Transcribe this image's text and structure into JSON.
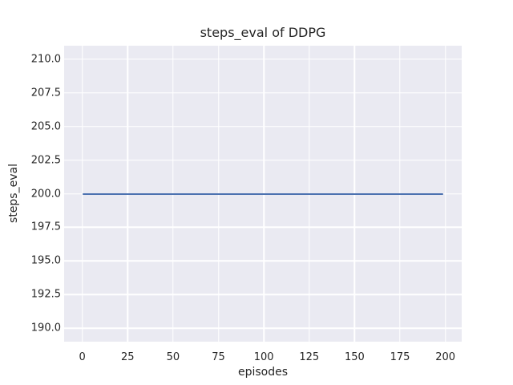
{
  "colors": {
    "figure_background": "#ffffff",
    "plot_background": "#eaeaf2",
    "gridline": "#ffffff",
    "line": "#4c72b0",
    "text": "#262626"
  },
  "chart_data": {
    "type": "line",
    "title": "steps_eval of DDPG",
    "xlabel": "episodes",
    "ylabel": "steps_eval",
    "grid": true,
    "legend": "none",
    "xlim": [
      -10,
      209
    ],
    "ylim": [
      189,
      211
    ],
    "x_ticks": [
      0,
      25,
      50,
      75,
      100,
      125,
      150,
      175,
      200
    ],
    "x_tick_labels": [
      "0",
      "25",
      "50",
      "75",
      "100",
      "125",
      "150",
      "175",
      "200"
    ],
    "y_ticks": [
      190.0,
      192.5,
      195.0,
      197.5,
      200.0,
      202.5,
      205.0,
      207.5,
      210.0
    ],
    "y_tick_labels": [
      "190.0",
      "192.5",
      "195.0",
      "197.5",
      "200.0",
      "202.5",
      "205.0",
      "207.5",
      "210.0"
    ],
    "series": [
      {
        "name": "steps_eval",
        "color": "#4c72b0",
        "description": "constant value 200 for every episode",
        "x": [
          0,
          199
        ],
        "y": [
          200,
          200
        ]
      }
    ]
  }
}
